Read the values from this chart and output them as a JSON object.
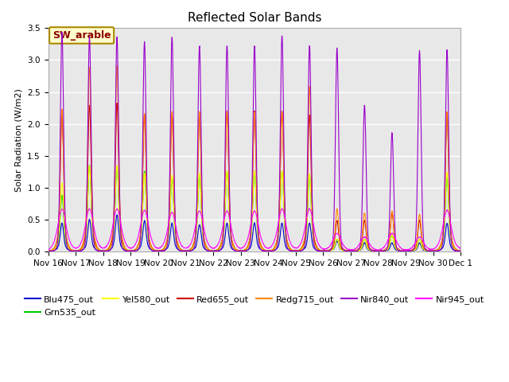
{
  "title": "Reflected Solar Bands",
  "ylabel": "Solar Radiation (W/m2)",
  "xlabel": "",
  "ylim": [
    0,
    3.5
  ],
  "annotation": "SW_arable",
  "series": [
    {
      "label": "Blu475_out",
      "color": "#0000cc",
      "lw": 0.8
    },
    {
      "label": "Grn535_out",
      "color": "#00cc00",
      "lw": 0.8
    },
    {
      "label": "Yel580_out",
      "color": "#ffff00",
      "lw": 0.8
    },
    {
      "label": "Red655_out",
      "color": "#cc0000",
      "lw": 0.8
    },
    {
      "label": "Redg715_out",
      "color": "#ff8800",
      "lw": 0.8
    },
    {
      "label": "Nir840_out",
      "color": "#9900cc",
      "lw": 0.8
    },
    {
      "label": "Nir945_out",
      "color": "#ff00ff",
      "lw": 0.8
    }
  ],
  "bg_color": "#e8e8e8",
  "grid_color": "#ffffff",
  "xtick_labels": [
    "Nov 16",
    "Nov 17",
    "Nov 18",
    "Nov 19",
    "Nov 20",
    "Nov 21",
    "Nov 22",
    "Nov 23",
    "Nov 24",
    "Nov 25",
    "Nov 26",
    "Nov 27",
    "Nov 28",
    "Nov 29",
    "Nov 30",
    "Dec 1"
  ],
  "title_fontsize": 11,
  "label_fontsize": 8,
  "tick_fontsize": 7.5
}
